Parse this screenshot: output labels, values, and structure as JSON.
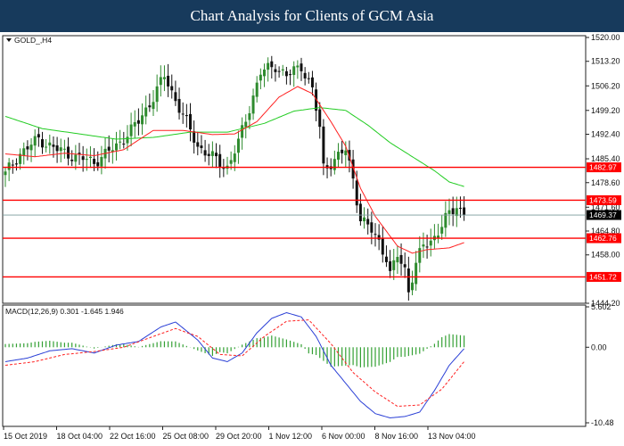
{
  "page": {
    "title": "Chart Analysis for Clients of GCM Asia"
  },
  "chart_data": [
    {
      "type": "candlestick",
      "symbol_label": "GOLD_,H4",
      "ylim": [
        1444.2,
        1520.0
      ],
      "y_ticks": [
        {
          "value": 1520.0,
          "label": "1520.00"
        },
        {
          "value": 1513.2,
          "label": "1513.20"
        },
        {
          "value": 1506.2,
          "label": "1506.20"
        },
        {
          "value": 1499.2,
          "label": "1499.20"
        },
        {
          "value": 1492.4,
          "label": "1492.40"
        },
        {
          "value": 1485.4,
          "label": "1485.40"
        },
        {
          "value": 1478.6,
          "label": "1478.60"
        },
        {
          "value": 1471.6,
          "label": "1471.60"
        },
        {
          "value": 1464.8,
          "label": "1464.80"
        },
        {
          "value": 1458.0,
          "label": "1458.00"
        },
        {
          "value": 1444.2,
          "label": "1444.20"
        }
      ],
      "x_labels": [
        "15 Oct 2019",
        "18 Oct 04:00",
        "22 Oct 16:00",
        "25 Oct 08:00",
        "29 Oct 20:00",
        "1 Nov 12:00",
        "6 Nov 00:00",
        "8 Nov 16:00",
        "13 Nov 04:00"
      ],
      "levels": [
        {
          "value": 1482.97,
          "label": "1482.97",
          "color": "#ff0000"
        },
        {
          "value": 1473.59,
          "label": "1473.59",
          "color": "#ff0000"
        },
        {
          "value": 1462.76,
          "label": "1462.76",
          "color": "#ff0000"
        },
        {
          "value": 1451.72,
          "label": "1451.72",
          "color": "#ff0000"
        }
      ],
      "current_price": {
        "value": 1469.37,
        "label": "1469.37"
      },
      "close_anchors": [
        [
          0,
          1481.0
        ],
        [
          4,
          1487.0
        ],
        [
          9,
          1491.0
        ],
        [
          14,
          1488.0
        ],
        [
          19,
          1486.0
        ],
        [
          24,
          1484.5
        ],
        [
          30,
          1489.0
        ],
        [
          36,
          1496.0
        ],
        [
          40,
          1503.0
        ],
        [
          43,
          1509.0
        ],
        [
          47,
          1500.0
        ],
        [
          52,
          1489.0
        ],
        [
          57,
          1485.0
        ],
        [
          60,
          1483.0
        ],
        [
          63,
          1490.0
        ],
        [
          66,
          1500.0
        ],
        [
          69,
          1510.0
        ],
        [
          73,
          1512.0
        ],
        [
          76,
          1509.0
        ],
        [
          80,
          1512.0
        ],
        [
          83,
          1505.0
        ],
        [
          85,
          1494.0
        ],
        [
          86,
          1483.0
        ],
        [
          89,
          1485.0
        ],
        [
          92,
          1488.0
        ],
        [
          94,
          1480.0
        ],
        [
          96,
          1468.0
        ],
        [
          99,
          1465.0
        ],
        [
          101,
          1462.0
        ],
        [
          103,
          1457.0
        ],
        [
          104,
          1452.0
        ],
        [
          106,
          1458.0
        ],
        [
          108,
          1454.0
        ],
        [
          109,
          1448.0
        ],
        [
          111,
          1455.0
        ],
        [
          113,
          1461.0
        ],
        [
          115,
          1462.0
        ],
        [
          118,
          1466.0
        ],
        [
          120,
          1470.0
        ],
        [
          122,
          1472.0
        ],
        [
          124,
          1469.37
        ]
      ],
      "ma_fast": [
        [
          0,
          1486.8
        ],
        [
          8,
          1486.0
        ],
        [
          16,
          1487.0
        ],
        [
          24,
          1486.3
        ],
        [
          32,
          1488.0
        ],
        [
          40,
          1493.5
        ],
        [
          48,
          1493.5
        ],
        [
          56,
          1492.3
        ],
        [
          62,
          1492.5
        ],
        [
          68,
          1496.0
        ],
        [
          74,
          1503.0
        ],
        [
          79,
          1506.0
        ],
        [
          83,
          1504.0
        ],
        [
          88,
          1496.0
        ],
        [
          92,
          1489.0
        ],
        [
          96,
          1477.0
        ],
        [
          100,
          1469.0
        ],
        [
          106,
          1460.5
        ],
        [
          110,
          1458.5
        ],
        [
          114,
          1459.5
        ],
        [
          120,
          1460.0
        ],
        [
          124,
          1461.5
        ]
      ],
      "ma_slow": [
        [
          0,
          1497.5
        ],
        [
          10,
          1494.0
        ],
        [
          20,
          1492.5
        ],
        [
          30,
          1491.0
        ],
        [
          40,
          1491.5
        ],
        [
          50,
          1493.0
        ],
        [
          60,
          1493.0
        ],
        [
          70,
          1495.5
        ],
        [
          78,
          1499.0
        ],
        [
          85,
          1500.0
        ],
        [
          92,
          1499.2
        ],
        [
          98,
          1495.0
        ],
        [
          104,
          1490.0
        ],
        [
          110,
          1486.0
        ],
        [
          116,
          1482.0
        ],
        [
          120,
          1478.8
        ],
        [
          124,
          1477.5
        ]
      ],
      "colors": {
        "bull": "#2e8b2e",
        "bear": "#111111",
        "ma_fast": "#ff2020",
        "ma_slow": "#22cc22",
        "level": "#ff0000",
        "current": "#7a9a9a",
        "tag_bg": "#ff0000",
        "current_tag_bg": "#000000"
      }
    },
    {
      "type": "macd",
      "label": "MACD(12,26,9) 0.301 -1.645 1.946",
      "ylim": [
        -10.48,
        5.602
      ],
      "y_ticks": [
        {
          "value": 5.602,
          "label": "5.602"
        },
        {
          "value": 0.0,
          "label": "0.00"
        },
        {
          "value": -10.48,
          "label": "-10.48"
        }
      ],
      "macd_line": [
        [
          0,
          -2.0
        ],
        [
          6,
          -1.5
        ],
        [
          12,
          -0.5
        ],
        [
          18,
          -0.2
        ],
        [
          24,
          -0.8
        ],
        [
          30,
          0.3
        ],
        [
          36,
          0.8
        ],
        [
          42,
          2.8
        ],
        [
          46,
          3.5
        ],
        [
          52,
          1.0
        ],
        [
          56,
          -1.5
        ],
        [
          60,
          -2.0
        ],
        [
          64,
          -0.8
        ],
        [
          68,
          2.0
        ],
        [
          72,
          4.0
        ],
        [
          76,
          4.8
        ],
        [
          80,
          4.2
        ],
        [
          84,
          1.5
        ],
        [
          88,
          -2.5
        ],
        [
          92,
          -5.0
        ],
        [
          96,
          -7.5
        ],
        [
          100,
          -9.2
        ],
        [
          104,
          -9.8
        ],
        [
          108,
          -9.6
        ],
        [
          112,
          -9.0
        ],
        [
          116,
          -6.0
        ],
        [
          120,
          -2.5
        ],
        [
          124,
          -0.2
        ]
      ],
      "signal_line": [
        [
          0,
          -2.5
        ],
        [
          8,
          -2.0
        ],
        [
          16,
          -1.0
        ],
        [
          24,
          -0.6
        ],
        [
          32,
          0.0
        ],
        [
          40,
          1.5
        ],
        [
          46,
          2.6
        ],
        [
          52,
          1.5
        ],
        [
          58,
          -1.0
        ],
        [
          64,
          -1.2
        ],
        [
          70,
          1.5
        ],
        [
          76,
          3.6
        ],
        [
          82,
          3.8
        ],
        [
          88,
          0.5
        ],
        [
          94,
          -3.5
        ],
        [
          100,
          -6.2
        ],
        [
          106,
          -8.2
        ],
        [
          112,
          -8.0
        ],
        [
          118,
          -5.8
        ],
        [
          124,
          -2.0
        ]
      ],
      "colors": {
        "macd": "#2a3fd6",
        "signal": "#ff2020",
        "hist": "#33a033"
      }
    }
  ]
}
